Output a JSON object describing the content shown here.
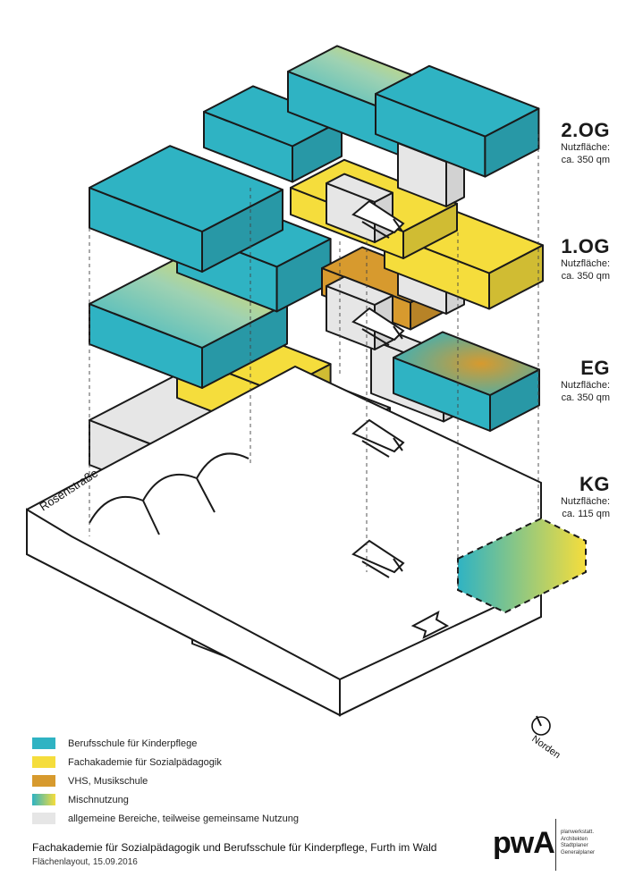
{
  "floors": [
    {
      "level": "2.OG",
      "area_label": "Nutzfläche:",
      "area_value": "ca. 350 qm"
    },
    {
      "level": "1.OG",
      "area_label": "Nutzfläche:",
      "area_value": "ca. 350 qm"
    },
    {
      "level": "EG",
      "area_label": "Nutzfläche:",
      "area_value": "ca. 350 qm"
    },
    {
      "level": "KG",
      "area_label": "Nutzfläche:",
      "area_value": "ca. 115 qm"
    }
  ],
  "street_label": "Rosenstraße",
  "north_label": "Norden",
  "legend": [
    {
      "label": "Berufsschule für Kinderpflege",
      "color": "#2fb3c3"
    },
    {
      "label": "Fachakademie für Sozialpädagogik",
      "color": "#f5dd3c"
    },
    {
      "label": "VHS, Musikschule",
      "color": "#d79a2e"
    },
    {
      "label": "Mischnutzung",
      "color": "gradient"
    },
    {
      "label": "allgemeine Bereiche, teilweise gemeinsame Nutzung",
      "color": "#e6e6e6"
    }
  ],
  "footer": {
    "title": "Fachakademie für Sozialpädagogik und Berufsschule für Kinderpflege, Furth im Wald",
    "subtitle": "Flächenlayout, 15.09.2016"
  },
  "logo": {
    "mark": "pwA",
    "lines": [
      "planwerkstatt.",
      "Architekten",
      "Stadtplaner",
      "Generalplaner"
    ]
  },
  "colors": {
    "teal": "#2fb3c3",
    "yellow": "#f5dd3c",
    "ochre": "#d79a2e",
    "grey": "#e6e6e6",
    "white": "#ffffff"
  }
}
